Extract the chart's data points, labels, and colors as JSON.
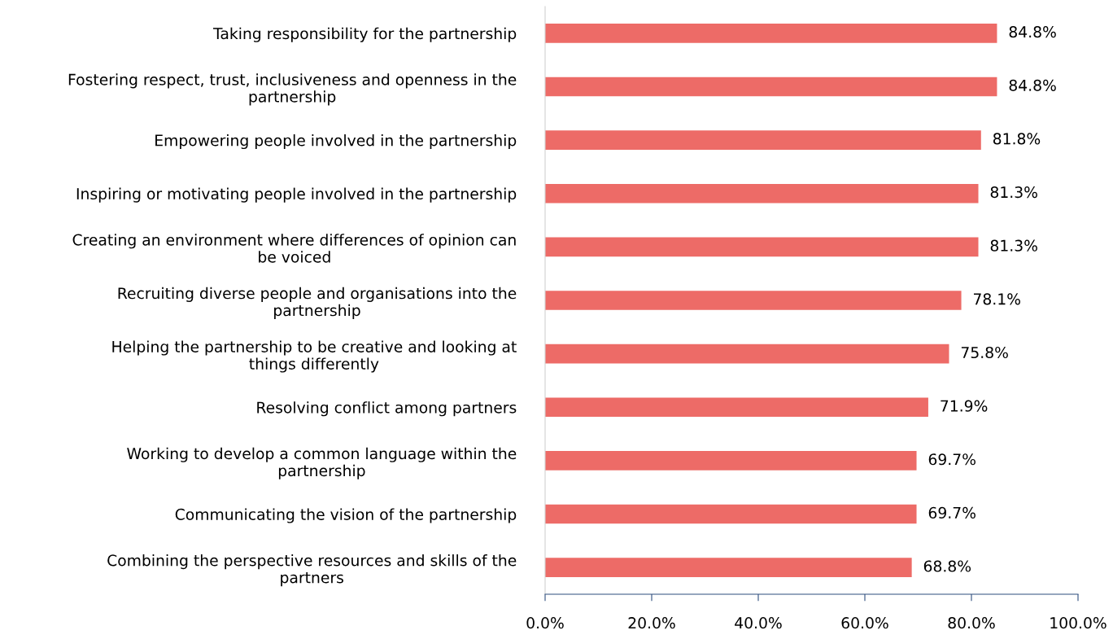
{
  "chart_data": {
    "type": "bar",
    "orientation": "horizontal",
    "categories": [
      "Taking responsibility for the partnership",
      "Fostering respect, trust, inclusiveness and openness in the\npartnership",
      "Empowering people involved in the partnership",
      "Inspiring or motivating people involved in the partnership",
      "Creating an environment where differences of opinion can\nbe voiced",
      "Recruiting diverse people and organisations into the\npartnership",
      "Helping the partnership to be creative and looking at\nthings differently",
      "Resolving conflict among partners",
      "Working to develop a common language within the\npartnership",
      "Communicating the vision of the partnership",
      "Combining the perspective resources and skills of the\npartners"
    ],
    "values": [
      84.8,
      84.8,
      81.8,
      81.3,
      81.3,
      78.1,
      75.8,
      71.9,
      69.7,
      69.7,
      68.8
    ],
    "value_labels": [
      "84.8%",
      "84.8%",
      "81.8%",
      "81.3%",
      "81.3%",
      "78.1%",
      "75.8%",
      "71.9%",
      "69.7%",
      "69.7%",
      "68.8%"
    ],
    "color": "#ed6b67",
    "xlim": [
      0,
      100
    ],
    "xticks": [
      {
        "value": 0,
        "label": "0.0%"
      },
      {
        "value": 20,
        "label": "20.0%"
      },
      {
        "value": 40,
        "label": "40.0%"
      },
      {
        "value": 60,
        "label": "60.0%"
      },
      {
        "value": 80,
        "label": "80.0%"
      },
      {
        "value": 100,
        "label": "100.0%"
      }
    ],
    "grid": false,
    "legend": false
  }
}
